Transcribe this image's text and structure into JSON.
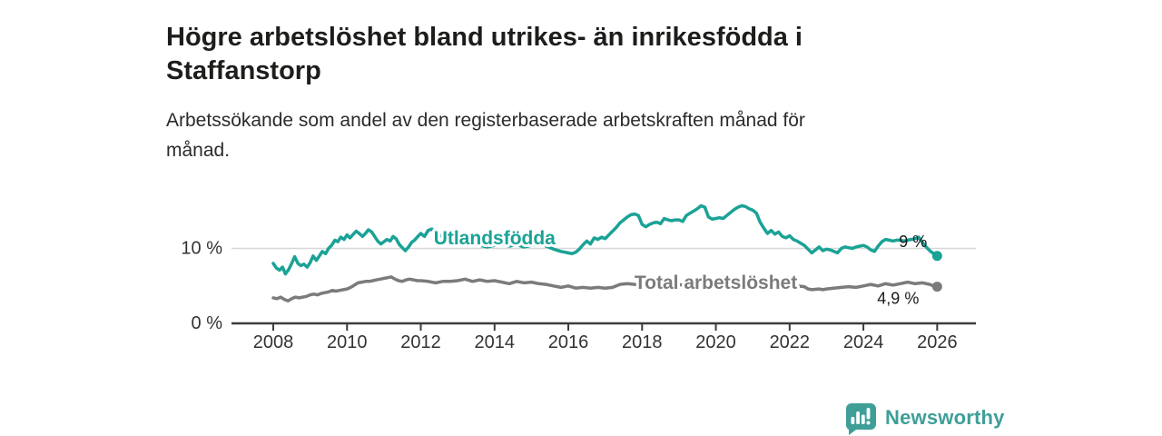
{
  "title": {
    "line1": "Högre arbetslöshet bland utrikes- än inrikesfödda i",
    "line2": "Staffanstorp"
  },
  "subtitle": {
    "line1": "Arbetssökande som andel av den registerbaserade arbetskraften månad för",
    "line2": "månad."
  },
  "branding": {
    "name": "Newsworthy",
    "icon": "newsworthy-speech-bubble-chart-icon",
    "color": "#3f9e98"
  },
  "colors": {
    "title": "#1d1d1b",
    "subtitle": "#2b2b2b",
    "axis_line": "#3c3c3c",
    "axis_text": "#333333",
    "gridline": "#d8d8d8",
    "series_foreign_born": "#1ba296",
    "series_total": "#7b7b7b",
    "end_label": "#1a1a1a"
  },
  "chart_data": {
    "type": "line",
    "title": "Högre arbetslöshet bland utrikes- än inrikesfödda i Staffanstorp",
    "subtitle": "Arbetssökande som andel av den registerbaserade arbetskraften månad för månad.",
    "xlabel": "",
    "ylabel": "",
    "x_range": [
      2007.9,
      2027.1
    ],
    "ylim": [
      0,
      17
    ],
    "grid": "single horizontal gridline at 10 %",
    "legend_position": "inline labels on lines",
    "x_ticks": [
      "2008",
      "2010",
      "2012",
      "2014",
      "2016",
      "2018",
      "2020",
      "2022",
      "2024",
      "2026"
    ],
    "y_ticks": [
      {
        "value": 0,
        "label": "0 %"
      },
      {
        "value": 10,
        "label": "10 %"
      }
    ],
    "series": [
      {
        "name": "Utlandsfödda",
        "color": "#1ba296",
        "end_label": "9 %",
        "end_value": 9.0,
        "label_anchor": {
          "x": 2014.0,
          "y": 10.55
        },
        "end_label_offset": [
          -11,
          -10
        ],
        "points": [
          [
            2008.0,
            8.0
          ],
          [
            2008.08,
            7.4
          ],
          [
            2008.17,
            7.1
          ],
          [
            2008.25,
            7.5
          ],
          [
            2008.33,
            6.6
          ],
          [
            2008.42,
            7.2
          ],
          [
            2008.5,
            8.0
          ],
          [
            2008.58,
            8.9
          ],
          [
            2008.67,
            8.0
          ],
          [
            2008.75,
            7.7
          ],
          [
            2008.83,
            7.9
          ],
          [
            2008.92,
            7.5
          ],
          [
            2009.0,
            8.1
          ],
          [
            2009.08,
            9.0
          ],
          [
            2009.17,
            8.4
          ],
          [
            2009.25,
            9.0
          ],
          [
            2009.33,
            9.6
          ],
          [
            2009.42,
            9.3
          ],
          [
            2009.5,
            10.0
          ],
          [
            2009.58,
            10.4
          ],
          [
            2009.67,
            11.1
          ],
          [
            2009.75,
            10.9
          ],
          [
            2009.83,
            11.5
          ],
          [
            2009.92,
            11.2
          ],
          [
            2010.0,
            11.8
          ],
          [
            2010.08,
            11.4
          ],
          [
            2010.17,
            11.9
          ],
          [
            2010.25,
            12.3
          ],
          [
            2010.33,
            12.0
          ],
          [
            2010.42,
            11.6
          ],
          [
            2010.5,
            12.0
          ],
          [
            2010.58,
            12.5
          ],
          [
            2010.67,
            12.2
          ],
          [
            2010.75,
            11.6
          ],
          [
            2010.83,
            11.0
          ],
          [
            2010.92,
            10.6
          ],
          [
            2011.0,
            10.9
          ],
          [
            2011.08,
            11.2
          ],
          [
            2011.17,
            11.0
          ],
          [
            2011.25,
            11.6
          ],
          [
            2011.33,
            11.3
          ],
          [
            2011.42,
            10.5
          ],
          [
            2011.5,
            10.1
          ],
          [
            2011.58,
            9.7
          ],
          [
            2011.67,
            10.2
          ],
          [
            2011.75,
            10.8
          ],
          [
            2011.83,
            11.1
          ],
          [
            2011.92,
            11.6
          ],
          [
            2012.0,
            12.0
          ],
          [
            2012.1,
            11.6
          ],
          [
            2012.2,
            12.4
          ],
          [
            2012.3,
            12.6
          ],
          [
            2012.4,
            12.1
          ],
          [
            2012.5,
            11.8
          ],
          [
            2012.6,
            11.5
          ],
          [
            2012.75,
            11.6
          ],
          [
            2012.9,
            11.3
          ],
          [
            2013.0,
            11.2
          ],
          [
            2013.2,
            11.0
          ],
          [
            2013.4,
            10.7
          ],
          [
            2013.6,
            10.4
          ],
          [
            2013.8,
            10.2
          ],
          [
            2014.0,
            10.4
          ],
          [
            2014.2,
            10.6
          ],
          [
            2014.4,
            10.3
          ],
          [
            2014.6,
            10.5
          ],
          [
            2014.8,
            10.2
          ],
          [
            2015.0,
            10.4
          ],
          [
            2015.2,
            10.6
          ],
          [
            2015.4,
            10.3
          ],
          [
            2015.6,
            9.9
          ],
          [
            2015.8,
            9.6
          ],
          [
            2016.0,
            9.4
          ],
          [
            2016.1,
            9.3
          ],
          [
            2016.2,
            9.5
          ],
          [
            2016.3,
            9.9
          ],
          [
            2016.4,
            10.5
          ],
          [
            2016.5,
            11.0
          ],
          [
            2016.6,
            10.6
          ],
          [
            2016.7,
            11.4
          ],
          [
            2016.8,
            11.2
          ],
          [
            2016.9,
            11.5
          ],
          [
            2017.0,
            11.3
          ],
          [
            2017.1,
            11.8
          ],
          [
            2017.2,
            12.3
          ],
          [
            2017.3,
            12.8
          ],
          [
            2017.4,
            13.4
          ],
          [
            2017.5,
            13.8
          ],
          [
            2017.6,
            14.2
          ],
          [
            2017.7,
            14.5
          ],
          [
            2017.8,
            14.6
          ],
          [
            2017.9,
            14.4
          ],
          [
            2018.0,
            13.2
          ],
          [
            2018.1,
            12.9
          ],
          [
            2018.2,
            13.2
          ],
          [
            2018.3,
            13.4
          ],
          [
            2018.4,
            13.5
          ],
          [
            2018.5,
            13.3
          ],
          [
            2018.6,
            14.0
          ],
          [
            2018.7,
            13.8
          ],
          [
            2018.8,
            13.7
          ],
          [
            2018.9,
            13.8
          ],
          [
            2019.0,
            13.8
          ],
          [
            2019.1,
            13.6
          ],
          [
            2019.2,
            14.4
          ],
          [
            2019.3,
            14.7
          ],
          [
            2019.4,
            15.0
          ],
          [
            2019.5,
            15.3
          ],
          [
            2019.6,
            15.7
          ],
          [
            2019.7,
            15.5
          ],
          [
            2019.8,
            14.2
          ],
          [
            2019.9,
            13.9
          ],
          [
            2020.0,
            14.0
          ],
          [
            2020.1,
            14.1
          ],
          [
            2020.2,
            14.0
          ],
          [
            2020.3,
            14.4
          ],
          [
            2020.4,
            14.8
          ],
          [
            2020.5,
            15.2
          ],
          [
            2020.6,
            15.5
          ],
          [
            2020.7,
            15.7
          ],
          [
            2020.8,
            15.6
          ],
          [
            2020.9,
            15.3
          ],
          [
            2021.0,
            15.1
          ],
          [
            2021.1,
            14.7
          ],
          [
            2021.2,
            13.5
          ],
          [
            2021.3,
            12.7
          ],
          [
            2021.4,
            12.0
          ],
          [
            2021.5,
            12.4
          ],
          [
            2021.6,
            11.9
          ],
          [
            2021.7,
            12.2
          ],
          [
            2021.8,
            11.6
          ],
          [
            2021.9,
            11.4
          ],
          [
            2022.0,
            11.7
          ],
          [
            2022.1,
            11.2
          ],
          [
            2022.2,
            11.0
          ],
          [
            2022.3,
            10.7
          ],
          [
            2022.4,
            10.4
          ],
          [
            2022.5,
            9.9
          ],
          [
            2022.6,
            9.4
          ],
          [
            2022.7,
            9.8
          ],
          [
            2022.8,
            10.2
          ],
          [
            2022.9,
            9.7
          ],
          [
            2023.0,
            9.9
          ],
          [
            2023.1,
            9.8
          ],
          [
            2023.2,
            9.6
          ],
          [
            2023.3,
            9.4
          ],
          [
            2023.4,
            10.0
          ],
          [
            2023.5,
            10.2
          ],
          [
            2023.6,
            10.1
          ],
          [
            2023.7,
            10.0
          ],
          [
            2023.8,
            10.2
          ],
          [
            2023.9,
            10.3
          ],
          [
            2024.0,
            10.4
          ],
          [
            2024.1,
            10.2
          ],
          [
            2024.2,
            9.8
          ],
          [
            2024.3,
            9.6
          ],
          [
            2024.4,
            10.3
          ],
          [
            2024.5,
            10.9
          ],
          [
            2024.6,
            11.2
          ],
          [
            2024.7,
            11.1
          ],
          [
            2024.8,
            11.0
          ],
          [
            2024.9,
            11.1
          ],
          [
            2025.0,
            11.1
          ],
          [
            2025.1,
            11.0
          ],
          [
            2025.2,
            11.1
          ],
          [
            2025.3,
            11.2
          ],
          [
            2025.4,
            11.3
          ],
          [
            2025.5,
            11.5
          ],
          [
            2025.6,
            10.8
          ],
          [
            2025.7,
            10.2
          ],
          [
            2025.8,
            9.7
          ],
          [
            2025.9,
            9.3
          ],
          [
            2026.0,
            9.0
          ]
        ]
      },
      {
        "name": "Total arbetslöshet",
        "color": "#7b7b7b",
        "end_label": "4,9 %",
        "end_value": 4.9,
        "label_anchor": {
          "x": 2020.0,
          "y": 4.6
        },
        "end_label_offset": [
          -20,
          19
        ],
        "points": [
          [
            2008.0,
            3.4
          ],
          [
            2008.1,
            3.3
          ],
          [
            2008.2,
            3.5
          ],
          [
            2008.3,
            3.2
          ],
          [
            2008.4,
            3.0
          ],
          [
            2008.5,
            3.3
          ],
          [
            2008.6,
            3.5
          ],
          [
            2008.7,
            3.4
          ],
          [
            2008.8,
            3.5
          ],
          [
            2008.9,
            3.6
          ],
          [
            2009.0,
            3.8
          ],
          [
            2009.1,
            3.9
          ],
          [
            2009.2,
            3.8
          ],
          [
            2009.3,
            4.0
          ],
          [
            2009.4,
            4.1
          ],
          [
            2009.5,
            4.2
          ],
          [
            2009.6,
            4.4
          ],
          [
            2009.7,
            4.3
          ],
          [
            2009.8,
            4.4
          ],
          [
            2009.9,
            4.5
          ],
          [
            2010.0,
            4.6
          ],
          [
            2010.1,
            4.8
          ],
          [
            2010.2,
            5.1
          ],
          [
            2010.3,
            5.4
          ],
          [
            2010.4,
            5.5
          ],
          [
            2010.5,
            5.6
          ],
          [
            2010.6,
            5.6
          ],
          [
            2010.7,
            5.7
          ],
          [
            2010.8,
            5.8
          ],
          [
            2010.9,
            5.9
          ],
          [
            2011.0,
            6.0
          ],
          [
            2011.1,
            6.1
          ],
          [
            2011.2,
            6.2
          ],
          [
            2011.3,
            5.9
          ],
          [
            2011.4,
            5.7
          ],
          [
            2011.5,
            5.6
          ],
          [
            2011.6,
            5.8
          ],
          [
            2011.7,
            5.9
          ],
          [
            2011.8,
            5.8
          ],
          [
            2011.9,
            5.7
          ],
          [
            2012.0,
            5.7
          ],
          [
            2012.2,
            5.6
          ],
          [
            2012.4,
            5.4
          ],
          [
            2012.6,
            5.6
          ],
          [
            2012.8,
            5.6
          ],
          [
            2013.0,
            5.7
          ],
          [
            2013.2,
            5.9
          ],
          [
            2013.4,
            5.6
          ],
          [
            2013.6,
            5.8
          ],
          [
            2013.8,
            5.6
          ],
          [
            2014.0,
            5.7
          ],
          [
            2014.2,
            5.5
          ],
          [
            2014.4,
            5.3
          ],
          [
            2014.6,
            5.6
          ],
          [
            2014.8,
            5.4
          ],
          [
            2015.0,
            5.5
          ],
          [
            2015.2,
            5.3
          ],
          [
            2015.4,
            5.2
          ],
          [
            2015.6,
            5.0
          ],
          [
            2015.8,
            4.8
          ],
          [
            2016.0,
            5.0
          ],
          [
            2016.2,
            4.7
          ],
          [
            2016.4,
            4.8
          ],
          [
            2016.6,
            4.7
          ],
          [
            2016.8,
            4.8
          ],
          [
            2017.0,
            4.7
          ],
          [
            2017.2,
            4.8
          ],
          [
            2017.4,
            5.2
          ],
          [
            2017.6,
            5.3
          ],
          [
            2017.8,
            5.2
          ],
          [
            2018.0,
            5.1
          ],
          [
            2018.3,
            5.2
          ],
          [
            2018.6,
            5.1
          ],
          [
            2018.9,
            5.2
          ],
          [
            2019.2,
            5.1
          ],
          [
            2019.5,
            5.2
          ],
          [
            2019.8,
            5.3
          ],
          [
            2020.0,
            5.4
          ],
          [
            2020.3,
            5.8
          ],
          [
            2020.6,
            5.9
          ],
          [
            2020.9,
            5.8
          ],
          [
            2021.2,
            5.6
          ],
          [
            2021.5,
            5.4
          ],
          [
            2021.8,
            5.2
          ],
          [
            2022.0,
            5.1
          ],
          [
            2022.2,
            5.0
          ],
          [
            2022.4,
            4.9
          ],
          [
            2022.5,
            4.6
          ],
          [
            2022.6,
            4.5
          ],
          [
            2022.8,
            4.6
          ],
          [
            2022.9,
            4.5
          ],
          [
            2023.0,
            4.6
          ],
          [
            2023.2,
            4.7
          ],
          [
            2023.4,
            4.8
          ],
          [
            2023.6,
            4.9
          ],
          [
            2023.8,
            4.8
          ],
          [
            2024.0,
            5.0
          ],
          [
            2024.2,
            5.2
          ],
          [
            2024.4,
            5.0
          ],
          [
            2024.6,
            5.3
          ],
          [
            2024.8,
            5.1
          ],
          [
            2025.0,
            5.3
          ],
          [
            2025.2,
            5.5
          ],
          [
            2025.4,
            5.3
          ],
          [
            2025.6,
            5.4
          ],
          [
            2025.8,
            5.2
          ],
          [
            2025.9,
            5.0
          ],
          [
            2026.0,
            4.9
          ]
        ]
      }
    ]
  }
}
